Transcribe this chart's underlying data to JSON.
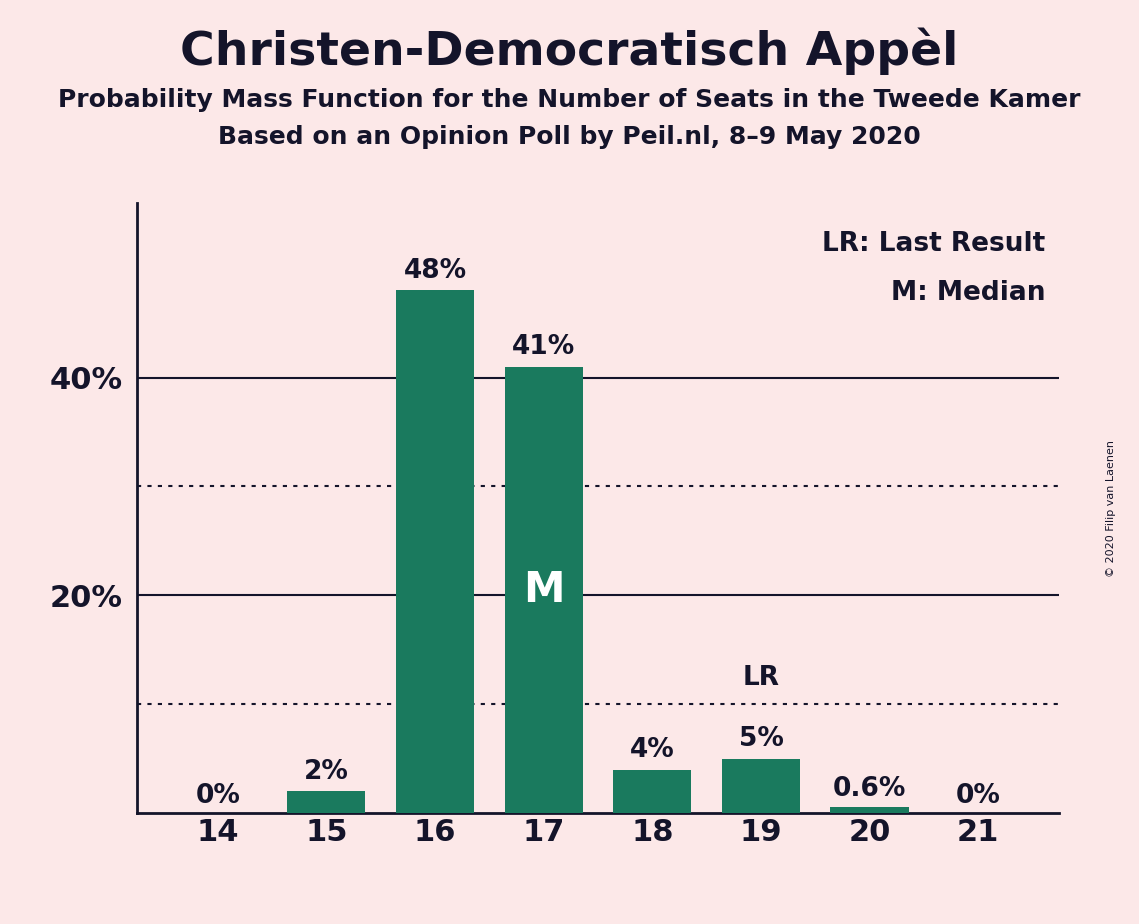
{
  "title": "Christen-Democratisch Appèl",
  "subtitle1": "Probability Mass Function for the Number of Seats in the Tweede Kamer",
  "subtitle2": "Based on an Opinion Poll by Peil.nl, 8–9 May 2020",
  "copyright": "© 2020 Filip van Laenen",
  "categories": [
    14,
    15,
    16,
    17,
    18,
    19,
    20,
    21
  ],
  "values": [
    0,
    2,
    48,
    41,
    4,
    5,
    0.6,
    0
  ],
  "bar_color": "#1a7a5e",
  "background_color": "#fce8e8",
  "text_color": "#14142a",
  "bar_labels": [
    "0%",
    "2%",
    "48%",
    "41%",
    "4%",
    "5%",
    "0.6%",
    "0%"
  ],
  "median_bar_index": 3,
  "lr_bar_index": 5,
  "legend_lr": "LR: Last Result",
  "legend_m": "M: Median",
  "yticks": [
    20,
    40
  ],
  "dotted_lines": [
    10,
    30
  ],
  "solid_lines": [
    20,
    40
  ],
  "ylim": [
    0,
    56
  ]
}
